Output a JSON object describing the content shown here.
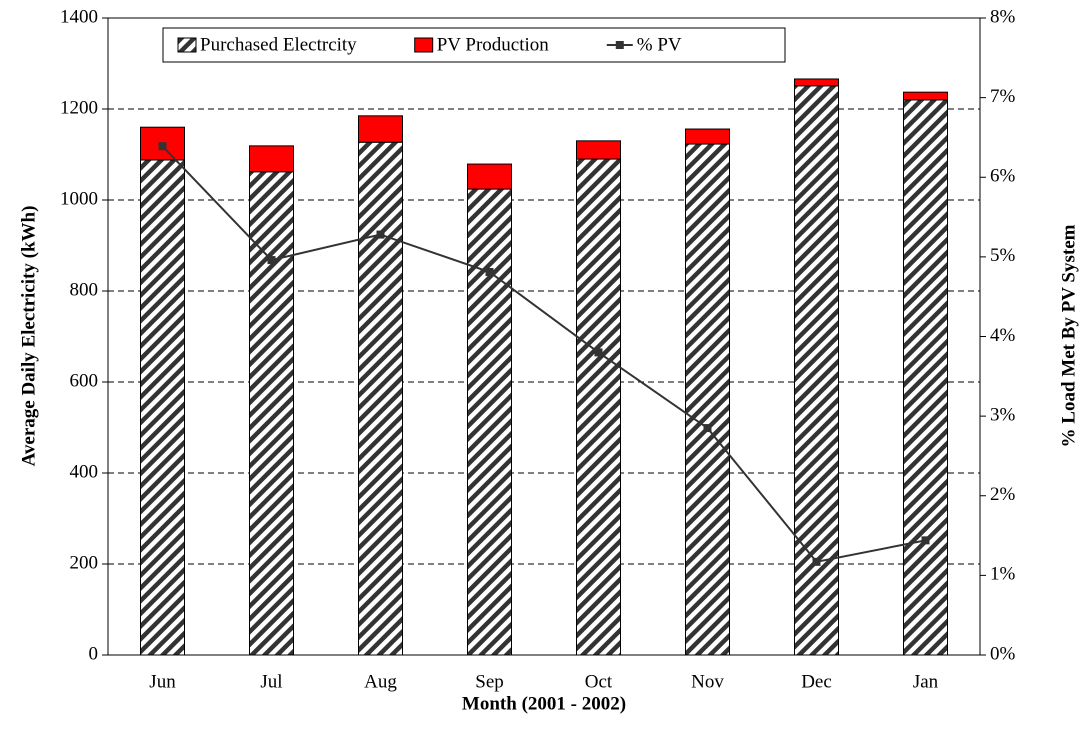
{
  "chart_data": {
    "type": "bar",
    "x_label": "Month (2001 - 2002)",
    "y_label": "Average Daily Electricity (kWh)",
    "y2_label": "% Load Met By PV System",
    "categories": [
      "Jun",
      "Jul",
      "Aug",
      "Sep",
      "Oct",
      "Nov",
      "Dec",
      "Jan"
    ],
    "series": [
      {
        "name": "Purchased Electrcity",
        "color": "#000000",
        "pattern": "hatch",
        "values": [
          1088,
          1062,
          1127,
          1024,
          1090,
          1123,
          1251,
          1220
        ]
      },
      {
        "name": "PV Production",
        "color": "#ff0000",
        "values": [
          72,
          57,
          58,
          55,
          40,
          33,
          15,
          17
        ]
      },
      {
        "name": "% PV",
        "type": "line",
        "axis": "y2",
        "color": "#333333",
        "values": [
          6.39,
          4.96,
          5.28,
          4.81,
          3.8,
          2.85,
          1.17,
          1.44
        ]
      }
    ],
    "stacked": true,
    "ylim": [
      0,
      1400
    ],
    "yticks": [
      0,
      200,
      400,
      600,
      800,
      1000,
      1200,
      1400
    ],
    "y2lim": [
      0,
      8
    ],
    "y2ticks": [
      {
        "value": 0,
        "label": "0%"
      },
      {
        "value": 1,
        "label": "1%"
      },
      {
        "value": 2,
        "label": "2%"
      },
      {
        "value": 3,
        "label": "3%"
      },
      {
        "value": 4,
        "label": "4%"
      },
      {
        "value": 5,
        "label": "5%"
      },
      {
        "value": 6,
        "label": "6%"
      },
      {
        "value": 7,
        "label": "7%"
      },
      {
        "value": 8,
        "label": "8%"
      }
    ],
    "grid": true,
    "legend": "top"
  }
}
